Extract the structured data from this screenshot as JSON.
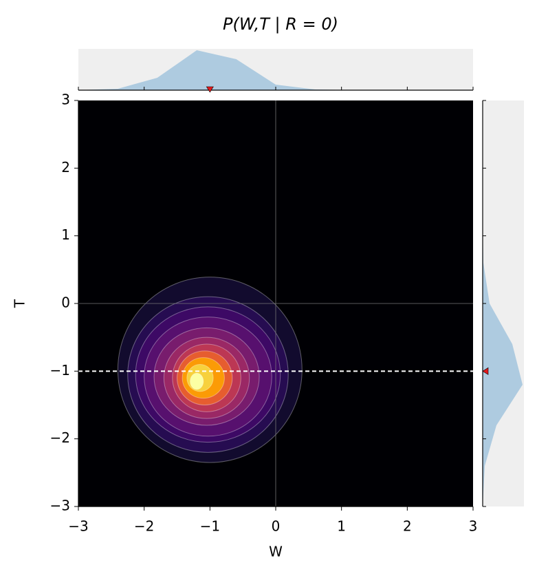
{
  "chart_data": {
    "type": "contour",
    "title": "P(W,T | R = 0)",
    "xlabel": "W",
    "ylabel": "T",
    "xlim": [
      -3,
      3
    ],
    "ylim": [
      -3,
      3
    ],
    "xticks": [
      {
        "value": -3,
        "label": "−3"
      },
      {
        "value": -2,
        "label": "−2"
      },
      {
        "value": -1,
        "label": "−1"
      },
      0,
      1,
      2,
      3
    ],
    "yticks": [
      {
        "value": -3,
        "label": "−3"
      },
      {
        "value": -2,
        "label": "−2"
      },
      {
        "value": -1,
        "label": "−1"
      },
      0,
      1,
      2,
      3
    ],
    "background": "#000004",
    "ref_lines": {
      "x": 0,
      "y": 0,
      "color": "#777777"
    },
    "condition": {
      "W": -1,
      "T": -1,
      "marker_color": "#e31a1c",
      "line_color": "#ffffff"
    },
    "contours": [
      {
        "cx": -1.0,
        "cy": -0.98,
        "rx": 1.4,
        "ry": 1.37,
        "color": "#120b2e"
      },
      {
        "cx": -1.03,
        "cy": -1.05,
        "rx": 1.22,
        "ry": 1.15,
        "color": "#260c51"
      },
      {
        "cx": -1.03,
        "cy": -1.05,
        "rx": 1.1,
        "ry": 1.0,
        "color": "#3d0965"
      },
      {
        "cx": -1.03,
        "cy": -1.08,
        "rx": 0.97,
        "ry": 0.88,
        "color": "#57106e"
      },
      {
        "cx": -1.05,
        "cy": -1.08,
        "rx": 0.8,
        "ry": 0.72,
        "color": "#781c6d"
      },
      {
        "cx": -1.05,
        "cy": -1.1,
        "rx": 0.65,
        "ry": 0.6,
        "color": "#9a2865"
      },
      {
        "cx": -1.05,
        "cy": -1.1,
        "rx": 0.52,
        "ry": 0.5,
        "color": "#bc3754"
      },
      {
        "cx": -1.08,
        "cy": -1.1,
        "rx": 0.42,
        "ry": 0.4,
        "color": "#e65d2f"
      },
      {
        "cx": -1.1,
        "cy": -1.1,
        "rx": 0.32,
        "ry": 0.3,
        "color": "#fb9b06"
      },
      {
        "cx": -1.15,
        "cy": -1.1,
        "rx": 0.2,
        "ry": 0.2,
        "color": "#f7d13d"
      },
      {
        "cx": -1.2,
        "cy": -1.15,
        "rx": 0.1,
        "ry": 0.12,
        "color": "#fcffa4"
      }
    ],
    "marginal_color": "#aecbe0",
    "marginal_background": "#efefef",
    "top_marginal": {
      "x": [
        -3,
        -2.4,
        -1.8,
        -1.2,
        -0.6,
        0,
        0.6,
        1.2,
        1.8,
        2.4,
        3
      ],
      "values": [
        0,
        0.014,
        0.124,
        0.4,
        0.31,
        0.055,
        0.007,
        0,
        0,
        0,
        0
      ]
    },
    "right_marginal": {
      "y": [
        3,
        2.4,
        1.8,
        1.2,
        0.6,
        0,
        -0.6,
        -1.2,
        -1.8,
        -2.4,
        -3
      ],
      "values": [
        0,
        0,
        0,
        0,
        0.007,
        0.069,
        0.297,
        0.4,
        0.138,
        0.021,
        0
      ]
    }
  }
}
